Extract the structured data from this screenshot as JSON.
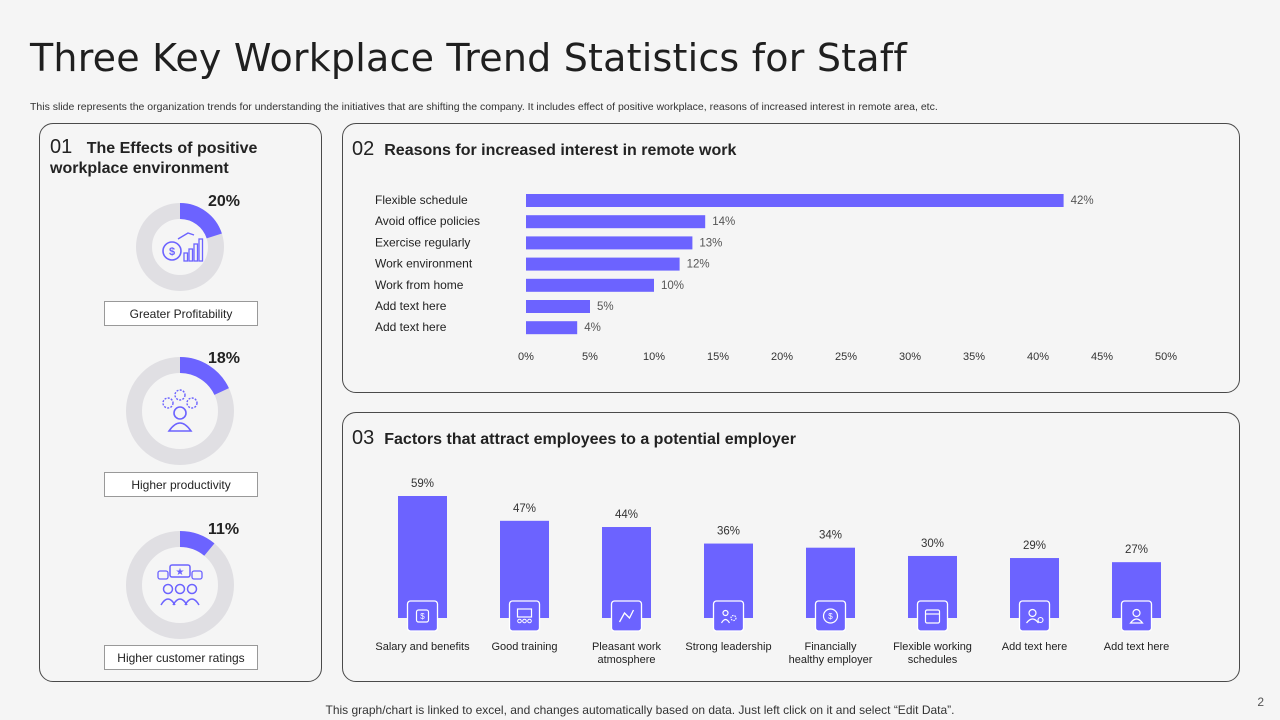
{
  "header": {
    "title": "Three Key Workplace Trend Statistics for Staff",
    "subtitle": "This slide represents the organization trends for understanding the initiatives that are shifting the company. It includes effect of positive workplace, reasons of increased interest in remote area, etc."
  },
  "colors": {
    "accent": "#6c63ff",
    "ring": "#e0dfe3",
    "border": "#4a4a4a",
    "background": "#f5f5f5"
  },
  "panel1": {
    "number": "01",
    "heading": "The Effects of positive workplace environment",
    "items": [
      {
        "value": 20,
        "pct_label": "20%",
        "label": "Greater Profitability",
        "icon": "coins-growth-icon"
      },
      {
        "value": 18,
        "pct_label": "18%",
        "label": "Higher productivity",
        "icon": "person-gears-icon"
      },
      {
        "value": 11,
        "pct_label": "11%",
        "label": "Higher customer ratings",
        "icon": "customer-rating-icon"
      }
    ]
  },
  "panel2": {
    "number": "02",
    "heading": "Reasons for increased interest in remote work"
  },
  "panel3": {
    "number": "03",
    "heading": "Factors that attract employees to a potential employer"
  },
  "chart_data": [
    {
      "type": "bar",
      "orientation": "horizontal",
      "title": "Reasons for increased interest in remote work",
      "categories": [
        "Flexible schedule",
        "Avoid office policies",
        "Exercise regularly",
        "Work environment",
        "Work from home",
        "Add text here",
        "Add text here"
      ],
      "values": [
        42,
        14,
        13,
        12,
        10,
        5,
        4
      ],
      "data_labels": [
        "42%",
        "14%",
        "13%",
        "12%",
        "10%",
        "5%",
        "4%"
      ],
      "xlim": [
        0,
        50
      ],
      "ticks": [
        "0%",
        "5%",
        "10%",
        "15%",
        "20%",
        "25%",
        "30%",
        "35%",
        "40%",
        "45%",
        "50%"
      ],
      "grid": false
    },
    {
      "type": "bar",
      "orientation": "vertical",
      "title": "Factors that attract employees to a potential employer",
      "categories": [
        "Salary and benefits",
        "Good training",
        "Pleasant work atmosphere",
        "Strong leadership",
        "Financially healthy employer",
        "Flexible working schedules",
        "Add text here",
        "Add text here"
      ],
      "values": [
        59,
        47,
        44,
        36,
        34,
        30,
        29,
        27
      ],
      "data_labels": [
        "59%",
        "47%",
        "44%",
        "36%",
        "34%",
        "30%",
        "29%",
        "27%"
      ],
      "icons": [
        "salary-icon",
        "training-icon",
        "atmosphere-icon",
        "leadership-icon",
        "finance-icon",
        "calendar-icon",
        "user-settings-icon",
        "user-icon"
      ],
      "grid": false
    }
  ],
  "footer": {
    "note": "This graph/chart is linked to excel, and changes automatically based on data. Just left click on it and select “Edit Data”.",
    "page": "2"
  }
}
